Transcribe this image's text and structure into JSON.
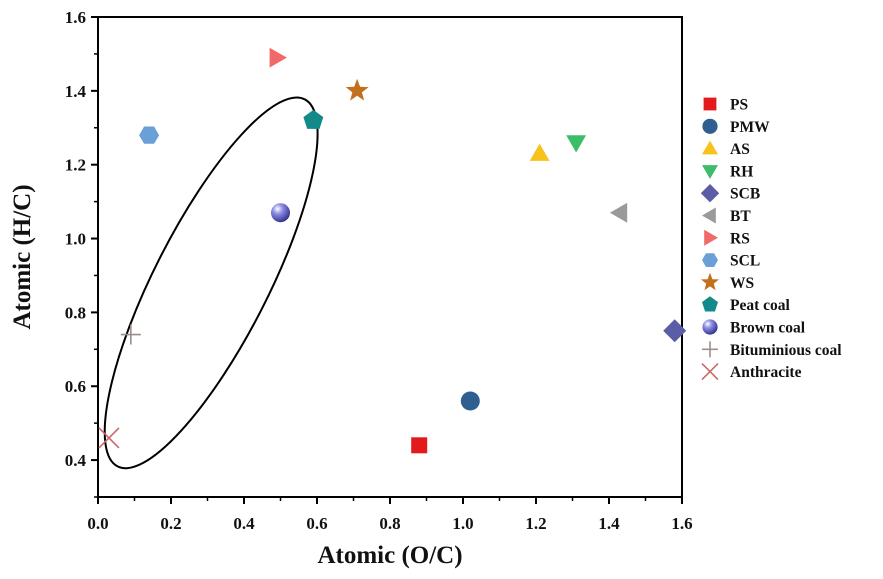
{
  "chart_data": {
    "type": "scatter",
    "title": "",
    "xlabel": "Atomic (O/C)",
    "ylabel": "Atomic (H/C)",
    "xlim": [
      0.0,
      1.6
    ],
    "ylim": [
      0.3,
      1.6
    ],
    "x_ticks": [
      "0.0",
      "0.2",
      "0.4",
      "0.6",
      "0.8",
      "1.0",
      "1.2",
      "1.4",
      "1.6"
    ],
    "y_ticks": [
      "0.4",
      "0.6",
      "0.8",
      "1.0",
      "1.2",
      "1.4",
      "1.6"
    ],
    "grid": false,
    "legend_position": "right",
    "series": [
      {
        "name": "PS",
        "x": 0.88,
        "y": 0.44,
        "marker": "square",
        "color": "#e31a1c"
      },
      {
        "name": "PMW",
        "x": 1.02,
        "y": 0.56,
        "marker": "circle",
        "color": "#2f5f91"
      },
      {
        "name": "AS",
        "x": 1.21,
        "y": 1.23,
        "marker": "triangle-up",
        "color": "#f6c21b"
      },
      {
        "name": "RH",
        "x": 1.31,
        "y": 1.26,
        "marker": "triangle-down",
        "color": "#3dbd6a"
      },
      {
        "name": "SCB",
        "x": 1.58,
        "y": 0.75,
        "marker": "diamond",
        "color": "#5b5ea6"
      },
      {
        "name": "BT",
        "x": 1.43,
        "y": 1.07,
        "marker": "triangle-left",
        "color": "#9a9a9a"
      },
      {
        "name": "RS",
        "x": 0.49,
        "y": 1.49,
        "marker": "triangle-right",
        "color": "#f06a6a"
      },
      {
        "name": "SCL",
        "x": 0.14,
        "y": 1.28,
        "marker": "hexagon",
        "color": "#6a9fd8"
      },
      {
        "name": "WS",
        "x": 0.71,
        "y": 1.4,
        "marker": "star",
        "color": "#c2701c"
      },
      {
        "name": "Peat coal",
        "x": 0.59,
        "y": 1.32,
        "marker": "pentagon",
        "color": "#138a8a"
      },
      {
        "name": "Brown coal",
        "x": 0.5,
        "y": 1.07,
        "marker": "sphere",
        "color": "#6a6ad0"
      },
      {
        "name": "Bituminious coal",
        "x": 0.09,
        "y": 0.74,
        "marker": "plus",
        "color": "#9a8f8a"
      },
      {
        "name": "Anthracite",
        "x": 0.03,
        "y": 0.46,
        "marker": "x",
        "color": "#c86a6a"
      }
    ],
    "annotations": [
      {
        "type": "ellipse",
        "center": [
          0.31,
          0.88
        ],
        "encloses": [
          "Peat coal",
          "Brown coal",
          "Bituminious coal",
          "Anthracite"
        ]
      }
    ]
  }
}
